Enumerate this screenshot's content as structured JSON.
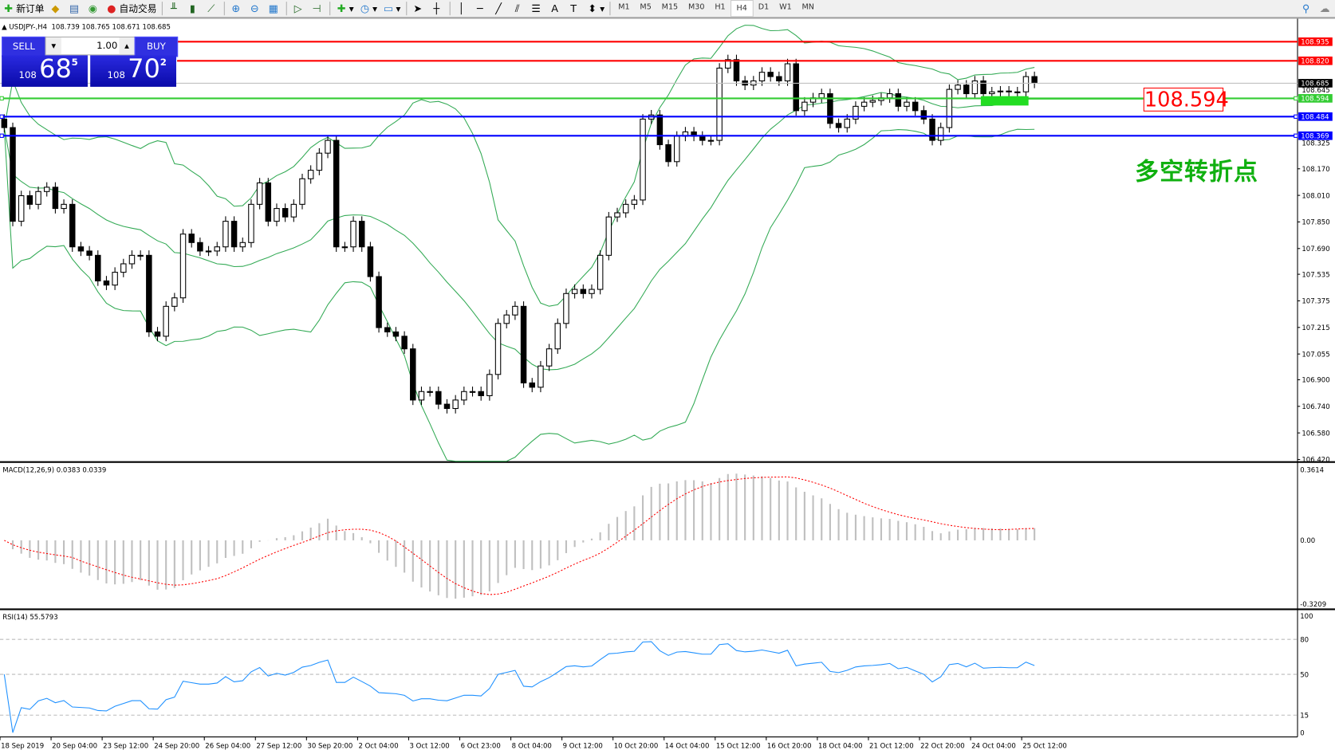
{
  "toolbar": {
    "new_order": "新订单",
    "auto_trading": "自动交易",
    "icons": [
      "new-order-icon",
      "history-icon",
      "market-watch-icon",
      "signals-icon",
      "auto-trading-icon",
      "bar-chart-icon",
      "candlestick-icon",
      "line-chart-icon",
      "zoom-in-icon",
      "zoom-out-icon",
      "tile-windows-icon",
      "scroll-icon",
      "shift-icon",
      "indicators-icon",
      "periods-icon",
      "templates-icon",
      "cursor-icon",
      "crosshair-icon",
      "vertical-line-icon",
      "horizontal-line-icon",
      "trendline-icon",
      "equidistant-channel-icon",
      "fibonacci-icon",
      "text-icon",
      "text-label-icon",
      "arrows-icon",
      "search-icon",
      "chat-icon"
    ],
    "timeframes": [
      "M1",
      "M5",
      "M15",
      "M30",
      "H1",
      "H4",
      "D1",
      "W1",
      "MN"
    ],
    "active_timeframe": "H4"
  },
  "header": {
    "symbol": "USDJPY-,H4",
    "ohlc": "108.739 108.765 108.671 108.685"
  },
  "one_click": {
    "sell": "SELL",
    "buy": "BUY",
    "lot": "1.00",
    "sell_prefix": "108",
    "sell_big": "68",
    "sell_sup": "5",
    "buy_prefix": "108",
    "buy_big": "70",
    "buy_sup": "2"
  },
  "annotation": {
    "price_box": "108.594",
    "text": "多空转折点",
    "text_color": "#10b010"
  },
  "chart_data": [
    {
      "type": "candlestick",
      "pane": "price",
      "ylim": [
        106.42,
        108.935
      ],
      "yticks": [
        "108.170",
        "108.010",
        "107.850",
        "107.690",
        "107.535",
        "107.375",
        "107.215",
        "107.055",
        "106.900",
        "106.740",
        "106.580",
        "106.420"
      ],
      "ytick_values": [
        108.17,
        108.01,
        107.85,
        107.69,
        107.535,
        107.375,
        107.215,
        107.055,
        106.9,
        106.74,
        106.58,
        106.42
      ],
      "hidden_ticks": [
        {
          "label": "108.645",
          "value": 108.645
        },
        {
          "label": "108.325",
          "value": 108.325
        }
      ],
      "levels": [
        {
          "label": "108.935",
          "value": 108.935,
          "color": "#ff0000"
        },
        {
          "label": "108.820",
          "value": 108.82,
          "color": "#ff0000"
        },
        {
          "label": "108.685",
          "value": 108.685,
          "color": "#000000",
          "kind": "bid"
        },
        {
          "label": "108.594",
          "value": 108.594,
          "color": "#33cc33"
        },
        {
          "label": "108.484",
          "value": 108.484,
          "color": "#0000ff"
        },
        {
          "label": "108.369",
          "value": 108.369,
          "color": "#0000ff"
        }
      ],
      "close": [
        108.418,
        107.854,
        108.008,
        107.956,
        108.033,
        108.059,
        107.931,
        107.956,
        107.7,
        107.675,
        107.649,
        107.495,
        107.47,
        107.547,
        107.598,
        107.649,
        107.649,
        107.188,
        107.162,
        107.342,
        107.393,
        107.777,
        107.726,
        107.675,
        107.675,
        107.7,
        107.854,
        107.7,
        107.726,
        107.956,
        108.085,
        107.854,
        107.931,
        107.88,
        107.956,
        108.11,
        108.161,
        108.264,
        108.341,
        107.7,
        107.7,
        107.854,
        107.7,
        107.521,
        107.214,
        107.188,
        107.162,
        107.086,
        106.778,
        106.829,
        106.829,
        106.753,
        106.727,
        106.778,
        106.829,
        106.829,
        106.804,
        106.932,
        107.239,
        107.29,
        107.342,
        106.881,
        106.855,
        106.983,
        107.086,
        107.239,
        107.419,
        107.444,
        107.419,
        107.444,
        107.649,
        107.88,
        107.905,
        107.956,
        107.982,
        108.469,
        108.494,
        108.315,
        108.213,
        108.366,
        108.392,
        108.366,
        108.341,
        108.341,
        108.776,
        108.827,
        108.699,
        108.674,
        108.699,
        108.751,
        108.725,
        108.699,
        108.802,
        108.52,
        108.571,
        108.597,
        108.622,
        108.443,
        108.418,
        108.469,
        108.546,
        108.571,
        108.581,
        108.597,
        108.622,
        108.546,
        108.571,
        108.52,
        108.469,
        108.341,
        108.418,
        108.648,
        108.674,
        108.622,
        108.699,
        108.622,
        108.633,
        108.638,
        108.633,
        108.633,
        108.725,
        108.685
      ],
      "bands_color": "#33aa55"
    },
    {
      "type": "histogram",
      "pane": "macd",
      "label": "MACD(12,26,9) 0.0383 0.0339",
      "ylim": [
        -0.3209,
        0.3614
      ],
      "yticks": [
        "0.3614",
        "0.00",
        "-0.3209"
      ],
      "ytick_values": [
        0.3614,
        0,
        -0.3209
      ],
      "bar_color": "#c0c0c0",
      "signal_color": "#ff0000"
    },
    {
      "type": "line",
      "pane": "rsi",
      "label": "RSI(14) 55.5793",
      "ylim": [
        0,
        100
      ],
      "yticks": [
        "100",
        "80",
        "50",
        "15",
        "0"
      ],
      "ytick_values": [
        100,
        80,
        50,
        15,
        0
      ],
      "levels": [
        80,
        50,
        15
      ],
      "color": "#1e90ff"
    }
  ],
  "time_axis": [
    "18 Sep 2019",
    "20 Sep 04:00",
    "23 Sep 12:00",
    "24 Sep 20:00",
    "26 Sep 04:00",
    "27 Sep 12:00",
    "30 Sep 20:00",
    "2 Oct 04:00",
    "3 Oct 12:00",
    "6 Oct 23:00",
    "8 Oct 04:00",
    "9 Oct 12:00",
    "10 Oct 20:00",
    "14 Oct 04:00",
    "15 Oct 12:00",
    "16 Oct 20:00",
    "18 Oct 04:00",
    "21 Oct 12:00",
    "22 Oct 20:00",
    "24 Oct 04:00",
    "25 Oct 12:00"
  ]
}
